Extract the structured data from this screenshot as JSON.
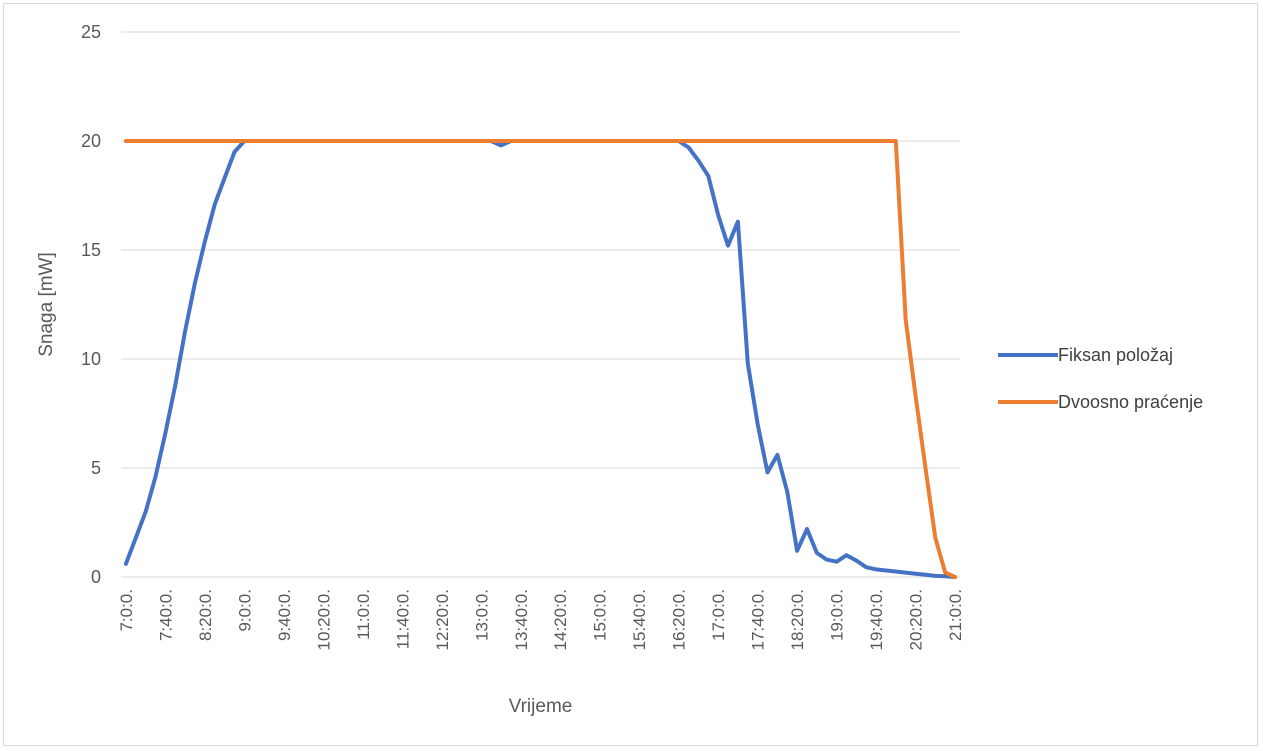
{
  "chart_data": {
    "type": "line",
    "xlabel": "Vrijeme",
    "ylabel": "Snaga [mW]",
    "ylim": [
      0,
      25
    ],
    "yticks": [
      0,
      5,
      10,
      15,
      20,
      25
    ],
    "grid": true,
    "legend_position": "right",
    "x": [
      "7:0:0.",
      "7:10:0.",
      "7:20:0.",
      "7:30:0.",
      "7:40:0.",
      "7:50:0.",
      "8:0:0.",
      "8:10:0.",
      "8:20:0.",
      "8:30:0.",
      "8:40:0.",
      "8:50:0.",
      "9:0:0.",
      "9:10:0.",
      "9:20:0.",
      "9:30:0.",
      "9:40:0.",
      "9:50:0.",
      "10:0:0.",
      "10:10:0.",
      "10:20:0.",
      "10:30:0.",
      "10:40:0.",
      "10:50:0.",
      "11:0:0.",
      "11:10:0.",
      "11:20:0.",
      "11:30:0.",
      "11:40:0.",
      "11:50:0.",
      "12:0:0.",
      "12:10:0.",
      "12:20:0.",
      "12:30:0.",
      "12:40:0.",
      "12:50:0.",
      "13:0:0.",
      "13:10:0.",
      "13:20:0.",
      "13:30:0.",
      "13:40:0.",
      "13:50:0.",
      "14:0:0.",
      "14:10:0.",
      "14:20:0.",
      "14:30:0.",
      "14:40:0.",
      "14:50:0.",
      "15:0:0.",
      "15:10:0.",
      "15:20:0.",
      "15:30:0.",
      "15:40:0.",
      "15:50:0.",
      "16:0:0.",
      "16:10:0.",
      "16:20:0.",
      "16:30:0.",
      "16:40:0.",
      "16:50:0.",
      "17:0:0.",
      "17:10:0.",
      "17:20:0.",
      "17:30:0.",
      "17:40:0.",
      "17:50:0.",
      "18:0:0.",
      "18:10:0.",
      "18:20:0.",
      "18:30:0.",
      "18:40:0.",
      "18:50:0.",
      "19:0:0.",
      "19:10:0.",
      "19:20:0.",
      "19:30:0.",
      "19:40:0.",
      "19:50:0.",
      "20:0:0.",
      "20:10:0.",
      "20:20:0.",
      "20:30:0.",
      "20:40:0.",
      "20:50:0.",
      "21:0:0."
    ],
    "tick_labels": [
      "7:0:0.",
      "7:40:0.",
      "8:20:0.",
      "9:0:0.",
      "9:40:0.",
      "10:20:0.",
      "11:0:0.",
      "11:40:0.",
      "12:20:0.",
      "13:0:0.",
      "13:40:0.",
      "14:20:0.",
      "15:0:0.",
      "15:40:0.",
      "16:20:0.",
      "17:0:0.",
      "17:40:0.",
      "18:20:0.",
      "19:0:0.",
      "19:40:0.",
      "20:20:0.",
      "21:0:0."
    ],
    "series": [
      {
        "name": "Fiksan položaj",
        "color": "#4472c4",
        "values": [
          0.6,
          1.8,
          3.0,
          4.6,
          6.6,
          8.8,
          11.3,
          13.5,
          15.4,
          17.1,
          18.3,
          19.5,
          20.0,
          20.0,
          20.0,
          20.0,
          20.0,
          20.0,
          20.0,
          20.0,
          20.0,
          20.0,
          20.0,
          20.0,
          20.0,
          20.0,
          20.0,
          20.0,
          20.0,
          20.0,
          20.0,
          20.0,
          20.0,
          20.0,
          20.0,
          20.0,
          20.0,
          20.0,
          19.8,
          20.0,
          20.0,
          20.0,
          20.0,
          20.0,
          20.0,
          20.0,
          20.0,
          20.0,
          20.0,
          20.0,
          20.0,
          20.0,
          20.0,
          20.0,
          20.0,
          20.0,
          20.0,
          19.7,
          19.1,
          18.4,
          16.6,
          15.2,
          16.3,
          9.8,
          7.0,
          4.8,
          5.6,
          3.9,
          1.2,
          2.2,
          1.1,
          0.8,
          0.7,
          1.0,
          0.75,
          0.45,
          0.35,
          0.3,
          0.25,
          0.2,
          0.15,
          0.1,
          0.05,
          0.03,
          0.0
        ]
      },
      {
        "name": "Dvoosno praćenje",
        "color": "#ed7d31",
        "values": [
          20.0,
          20.0,
          20.0,
          20.0,
          20.0,
          20.0,
          20.0,
          20.0,
          20.0,
          20.0,
          20.0,
          20.0,
          20.0,
          20.0,
          20.0,
          20.0,
          20.0,
          20.0,
          20.0,
          20.0,
          20.0,
          20.0,
          20.0,
          20.0,
          20.0,
          20.0,
          20.0,
          20.0,
          20.0,
          20.0,
          20.0,
          20.0,
          20.0,
          20.0,
          20.0,
          20.0,
          20.0,
          20.0,
          20.0,
          20.0,
          20.0,
          20.0,
          20.0,
          20.0,
          20.0,
          20.0,
          20.0,
          20.0,
          20.0,
          20.0,
          20.0,
          20.0,
          20.0,
          20.0,
          20.0,
          20.0,
          20.0,
          20.0,
          20.0,
          20.0,
          20.0,
          20.0,
          20.0,
          20.0,
          20.0,
          20.0,
          20.0,
          20.0,
          20.0,
          20.0,
          20.0,
          20.0,
          20.0,
          20.0,
          20.0,
          20.0,
          20.0,
          20.0,
          20.0,
          11.8,
          8.3,
          5.0,
          1.8,
          0.2,
          0.0
        ]
      }
    ]
  }
}
